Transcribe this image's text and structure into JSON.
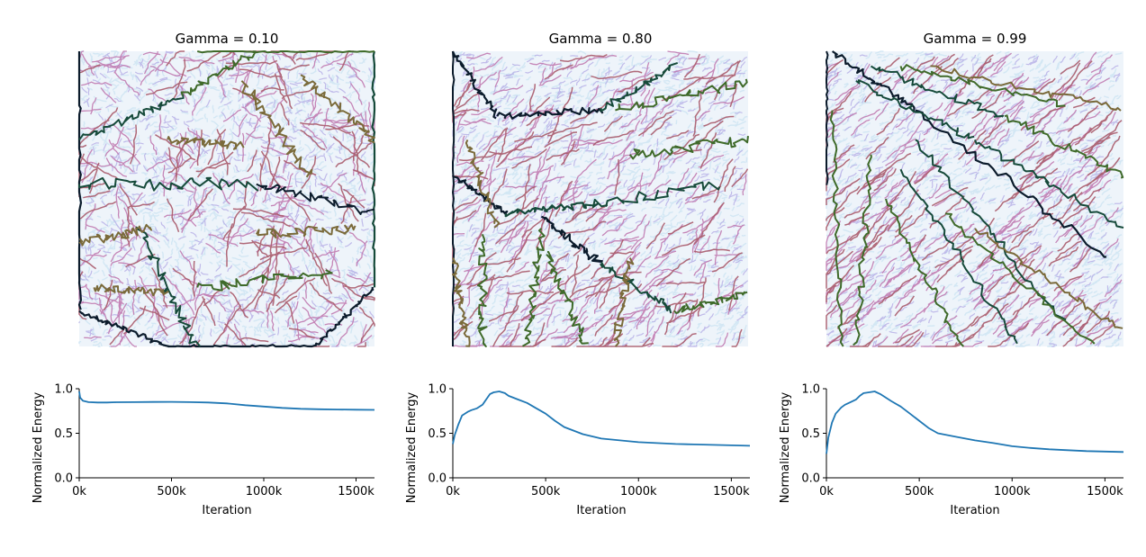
{
  "chart_data": [
    {
      "type": "image",
      "title": "Gamma = 0.10",
      "description": "river network map (low gamma)",
      "palette": [
        "#0b1b2b",
        "#164a3a",
        "#3f6a2a",
        "#7a6a3a",
        "#a85a6a",
        "#c07ab0",
        "#b7b0e6",
        "#cfe6f3"
      ]
    },
    {
      "type": "image",
      "title": "Gamma = 0.80",
      "description": "river network map (medium gamma)",
      "palette": [
        "#0b1b2b",
        "#164a3a",
        "#3f6a2a",
        "#7a6a3a",
        "#a85a6a",
        "#c07ab0",
        "#b7b0e6",
        "#cfe6f3"
      ]
    },
    {
      "type": "image",
      "title": "Gamma = 0.99",
      "description": "river network map (high gamma)",
      "palette": [
        "#0b1b2b",
        "#164a3a",
        "#3f6a2a",
        "#7a6a3a",
        "#a85a6a",
        "#c07ab0",
        "#b7b0e6",
        "#cfe6f3"
      ]
    },
    {
      "type": "line",
      "xlabel": "Iteration",
      "ylabel": "Normalized Energy",
      "xlim": [
        0,
        1600000
      ],
      "ylim": [
        0,
        1.0
      ],
      "xticks": [
        0,
        500000,
        1000000,
        1500000
      ],
      "xtick_labels": [
        "0k",
        "500k",
        "1000k",
        "1500k"
      ],
      "yticks": [
        0,
        0.5,
        1.0
      ],
      "ytick_labels": [
        "0.0",
        "0.5",
        "1.0"
      ],
      "color": "#1f77b4",
      "series": [
        {
          "x": [
            0,
            5000,
            20000,
            50000,
            100000,
            150000,
            200000,
            300000,
            400000,
            500000,
            600000,
            700000,
            800000,
            900000,
            1000000,
            1100000,
            1200000,
            1300000,
            1400000,
            1500000,
            1600000
          ],
          "y": [
            0.97,
            0.9,
            0.865,
            0.85,
            0.845,
            0.845,
            0.848,
            0.85,
            0.852,
            0.853,
            0.85,
            0.845,
            0.835,
            0.815,
            0.8,
            0.785,
            0.775,
            0.77,
            0.767,
            0.765,
            0.763
          ]
        }
      ]
    },
    {
      "type": "line",
      "xlabel": "Iteration",
      "ylabel": "Normalized Energy",
      "xlim": [
        0,
        1600000
      ],
      "ylim": [
        0,
        1.0
      ],
      "xticks": [
        0,
        500000,
        1000000,
        1500000
      ],
      "xtick_labels": [
        "0k",
        "500k",
        "1000k",
        "1500k"
      ],
      "yticks": [
        0,
        0.5,
        1.0
      ],
      "ytick_labels": [
        "0.0",
        "0.5",
        "1.0"
      ],
      "color": "#1f77b4",
      "series": [
        {
          "x": [
            0,
            10000,
            30000,
            50000,
            80000,
            100000,
            130000,
            160000,
            180000,
            200000,
            220000,
            250000,
            280000,
            300000,
            350000,
            400000,
            450000,
            500000,
            550000,
            600000,
            700000,
            800000,
            900000,
            1000000,
            1100000,
            1200000,
            1300000,
            1400000,
            1500000,
            1600000
          ],
          "y": [
            0.38,
            0.48,
            0.6,
            0.7,
            0.74,
            0.76,
            0.78,
            0.82,
            0.88,
            0.94,
            0.96,
            0.97,
            0.95,
            0.92,
            0.88,
            0.84,
            0.78,
            0.72,
            0.64,
            0.57,
            0.49,
            0.44,
            0.42,
            0.4,
            0.39,
            0.38,
            0.375,
            0.37,
            0.365,
            0.36
          ]
        }
      ]
    },
    {
      "type": "line",
      "xlabel": "Iteration",
      "ylabel": "Normalized Energy",
      "xlim": [
        0,
        1600000
      ],
      "ylim": [
        0,
        1.0
      ],
      "xticks": [
        0,
        500000,
        1000000,
        1500000
      ],
      "xtick_labels": [
        "0k",
        "500k",
        "1000k",
        "1500k"
      ],
      "yticks": [
        0,
        0.5,
        1.0
      ],
      "ytick_labels": [
        "0.0",
        "0.5",
        "1.0"
      ],
      "color": "#1f77b4",
      "series": [
        {
          "x": [
            0,
            10000,
            30000,
            50000,
            80000,
            100000,
            130000,
            160000,
            180000,
            200000,
            230000,
            260000,
            290000,
            320000,
            350000,
            400000,
            450000,
            500000,
            550000,
            600000,
            700000,
            800000,
            900000,
            1000000,
            1100000,
            1200000,
            1300000,
            1400000,
            1500000,
            1600000
          ],
          "y": [
            0.27,
            0.45,
            0.62,
            0.72,
            0.79,
            0.82,
            0.85,
            0.88,
            0.92,
            0.95,
            0.96,
            0.97,
            0.94,
            0.9,
            0.86,
            0.8,
            0.72,
            0.64,
            0.56,
            0.5,
            0.46,
            0.42,
            0.39,
            0.355,
            0.335,
            0.32,
            0.31,
            0.3,
            0.295,
            0.29
          ]
        }
      ]
    }
  ]
}
